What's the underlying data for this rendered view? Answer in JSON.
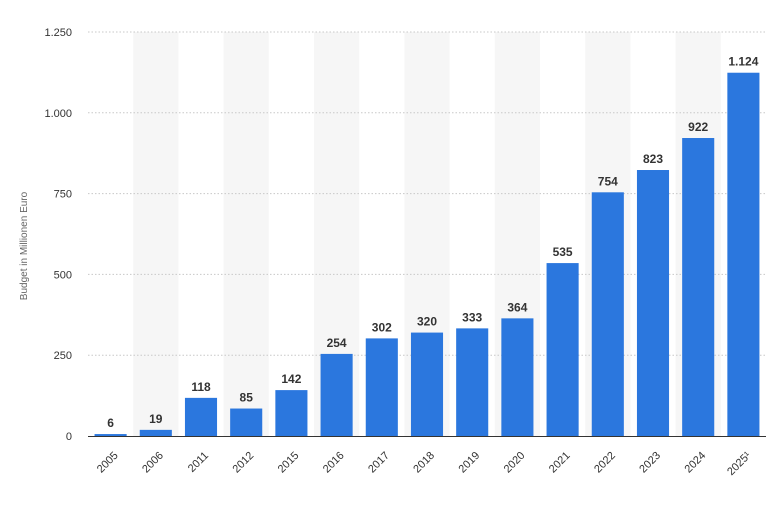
{
  "chart_data": {
    "type": "bar",
    "categories": [
      "2005",
      "2006",
      "2011",
      "2012",
      "2015",
      "2016",
      "2017",
      "2018",
      "2019",
      "2020",
      "2021",
      "2022",
      "2023",
      "2024",
      "2025¹"
    ],
    "values": [
      6,
      19,
      118,
      85,
      142,
      254,
      302,
      320,
      333,
      364,
      535,
      754,
      823,
      922,
      1124
    ],
    "value_labels": [
      "6",
      "19",
      "118",
      "85",
      "142",
      "254",
      "302",
      "320",
      "333",
      "364",
      "535",
      "754",
      "823",
      "922",
      "1.124"
    ],
    "ylabel": "Budget in Millionen Euro",
    "ylim": [
      0,
      1250
    ],
    "yticks": [
      0,
      250,
      500,
      750,
      1000,
      1250
    ],
    "ytick_labels": [
      "0",
      "250",
      "500",
      "750",
      "1.000",
      "1.250"
    ],
    "grid": true,
    "alternating_column_bands": true,
    "colors": {
      "bar": "#2b77de",
      "band": "#f6f6f6",
      "grid": "#c8c8c8",
      "axis": "#333333"
    }
  }
}
